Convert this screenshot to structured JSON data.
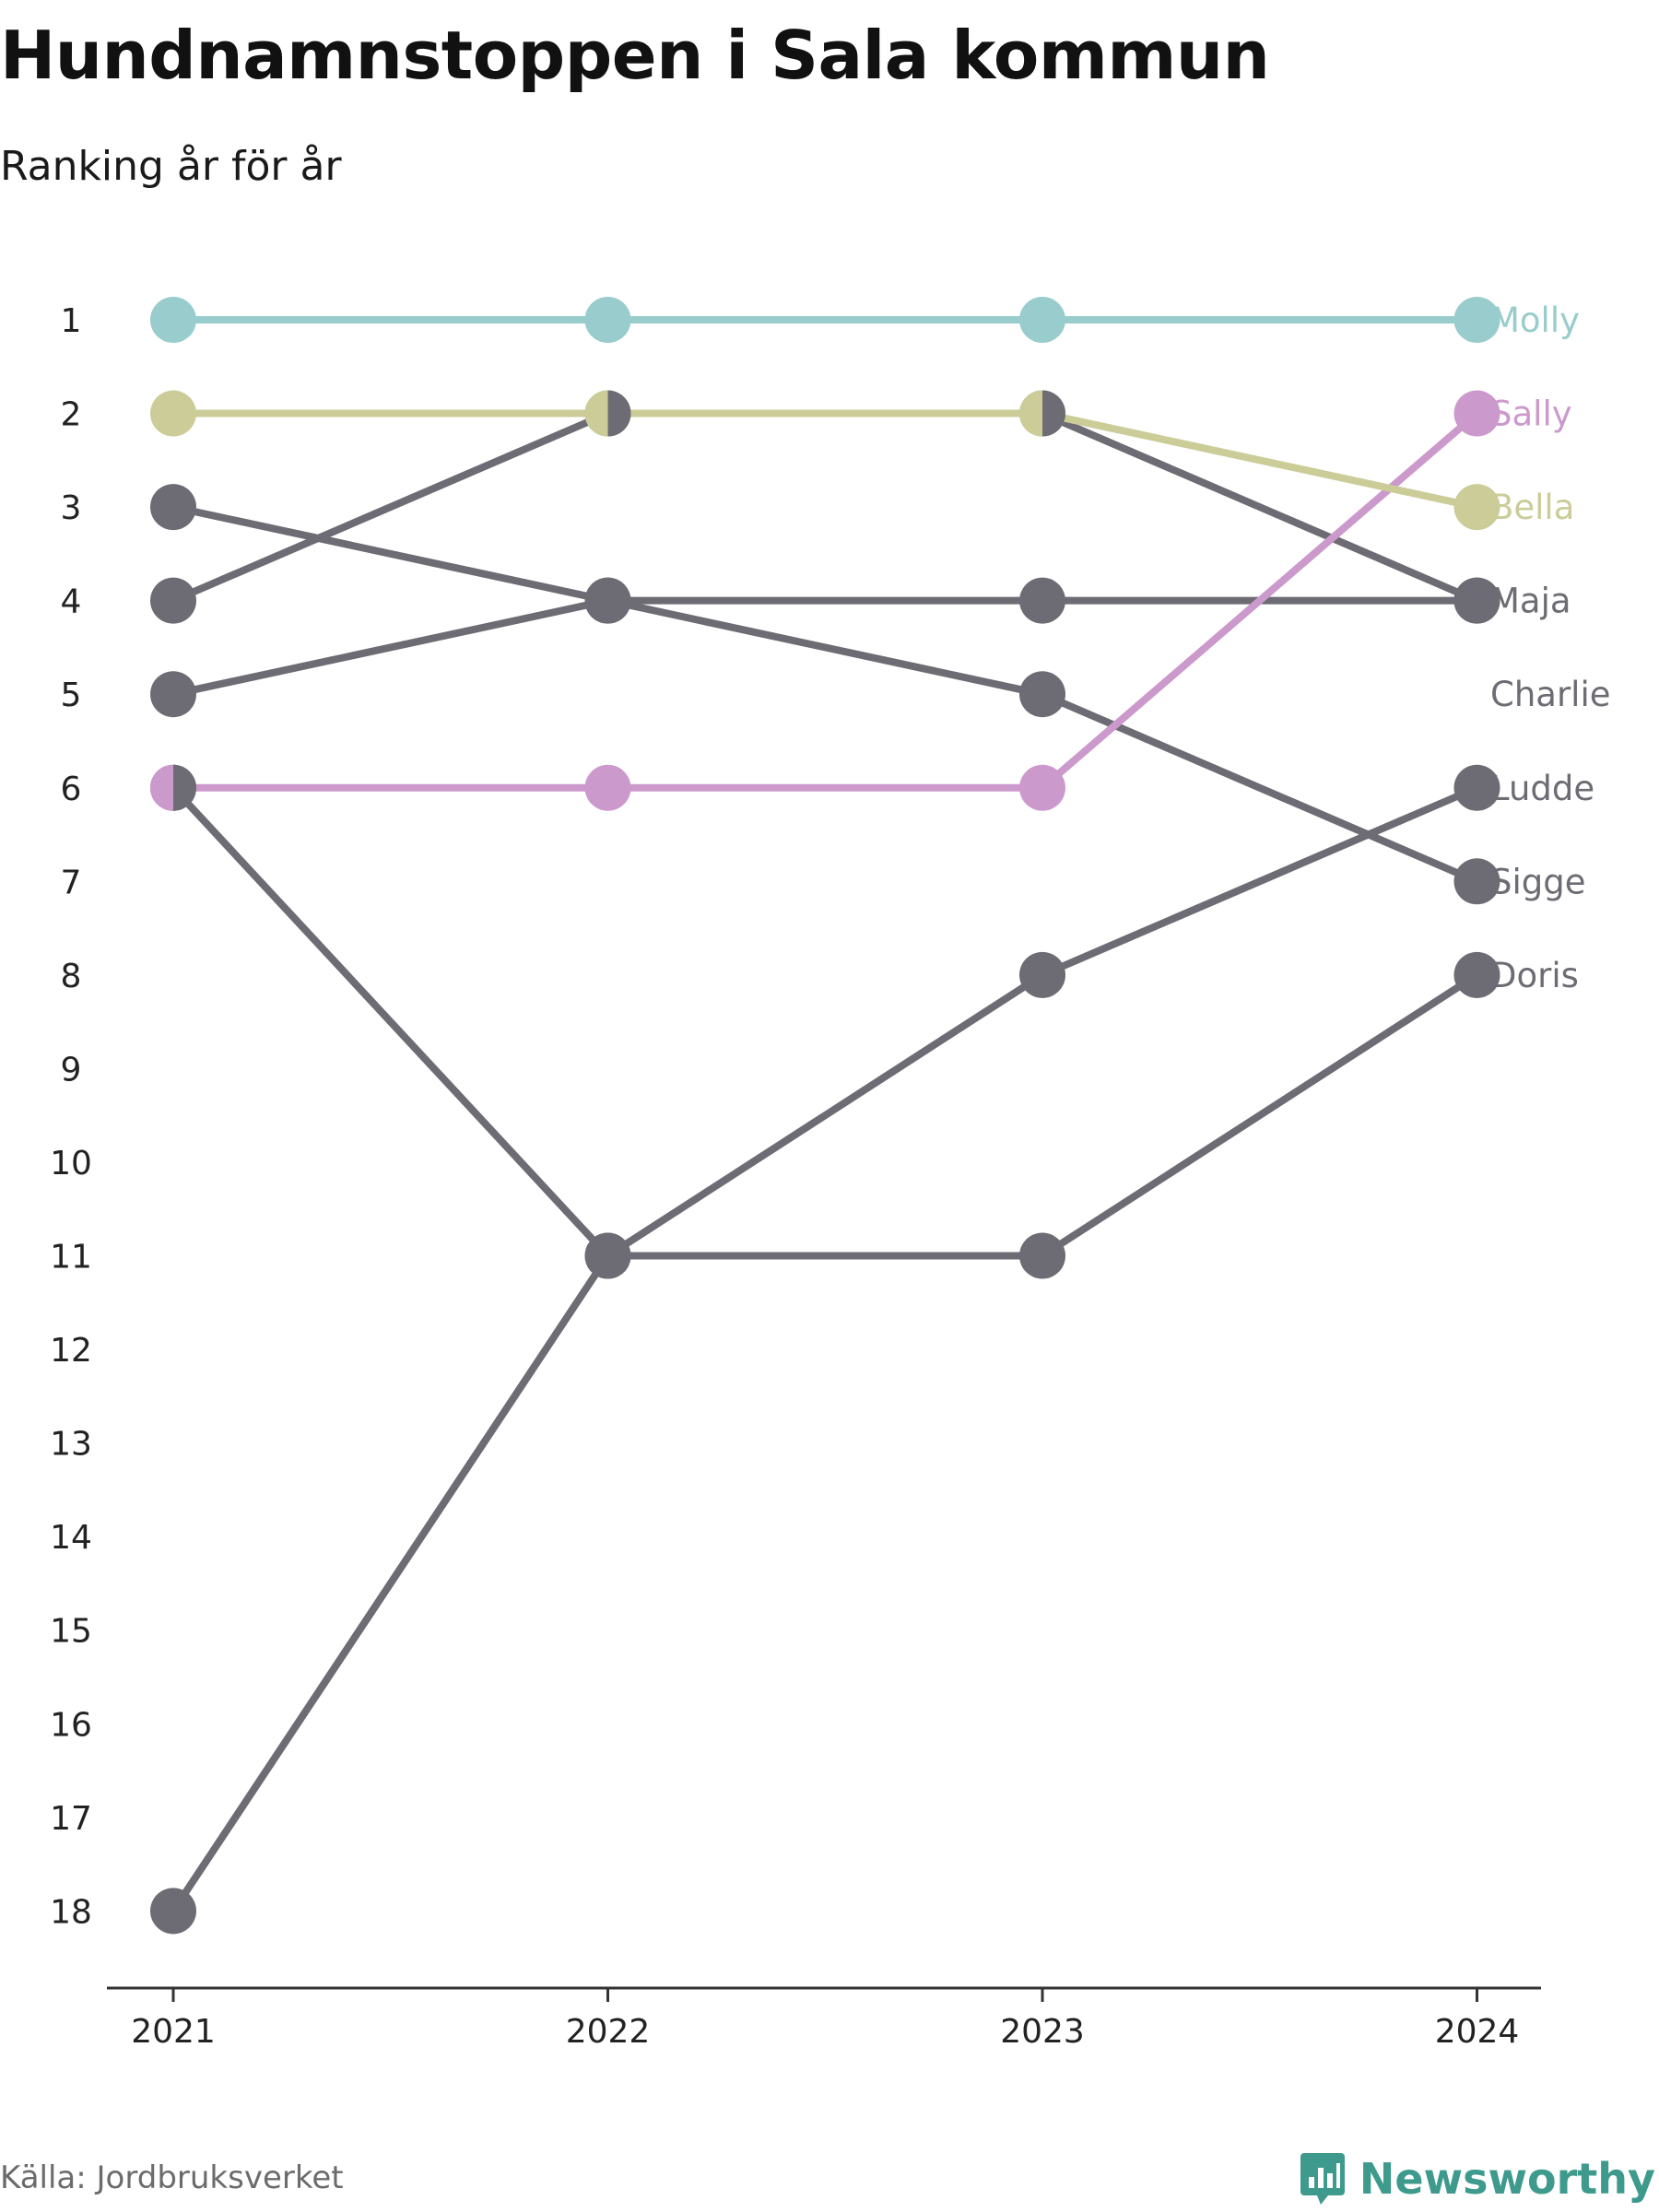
{
  "title": "Hundnamnstoppen i Sala kommun",
  "subtitle": "Ranking år för år",
  "source": "Källa: Jordbruksverket",
  "brand": {
    "name": "Newsworthy",
    "icon": "chart-speech-bubble-icon",
    "color": "#3e9a8c"
  },
  "chart_data": {
    "type": "line",
    "title": "Hundnamnstoppen i Sala kommun",
    "subtitle": "Ranking år för år",
    "x": [
      "2021",
      "2022",
      "2023",
      "2024"
    ],
    "y_ticks": [
      1,
      2,
      3,
      4,
      5,
      6,
      7,
      8,
      9,
      10,
      11,
      12,
      13,
      14,
      15,
      16,
      17,
      18
    ],
    "ylim": [
      1,
      18
    ],
    "y_reversed": true,
    "grid": false,
    "legend": "direct labels at right end",
    "series": [
      {
        "name": "Charlie",
        "values": [
          4,
          2,
          2,
          4
        ],
        "color": "#6d6c74"
      },
      {
        "name": "Maja",
        "values": [
          5,
          4,
          4,
          4
        ],
        "color": "#6d6c74"
      },
      {
        "name": "Sigge",
        "values": [
          3,
          4,
          5,
          7
        ],
        "color": "#6d6c74"
      },
      {
        "name": "Ludde",
        "values": [
          18,
          11,
          8,
          6
        ],
        "color": "#6d6c74"
      },
      {
        "name": "Doris",
        "values": [
          6,
          11,
          11,
          8
        ],
        "color": "#6d6c74"
      },
      {
        "name": "Sally",
        "values": [
          6,
          6,
          6,
          2
        ],
        "color": "#cc99cc"
      },
      {
        "name": "Bella",
        "values": [
          2,
          2,
          2,
          3
        ],
        "color": "#cccc99"
      },
      {
        "name": "Molly",
        "values": [
          1,
          1,
          1,
          1
        ],
        "color": "#99cccc"
      }
    ],
    "label_order": [
      "Molly",
      "Sally",
      "Bella",
      "Maja",
      "Charlie",
      "Ludde",
      "Sigge",
      "Doris"
    ]
  }
}
